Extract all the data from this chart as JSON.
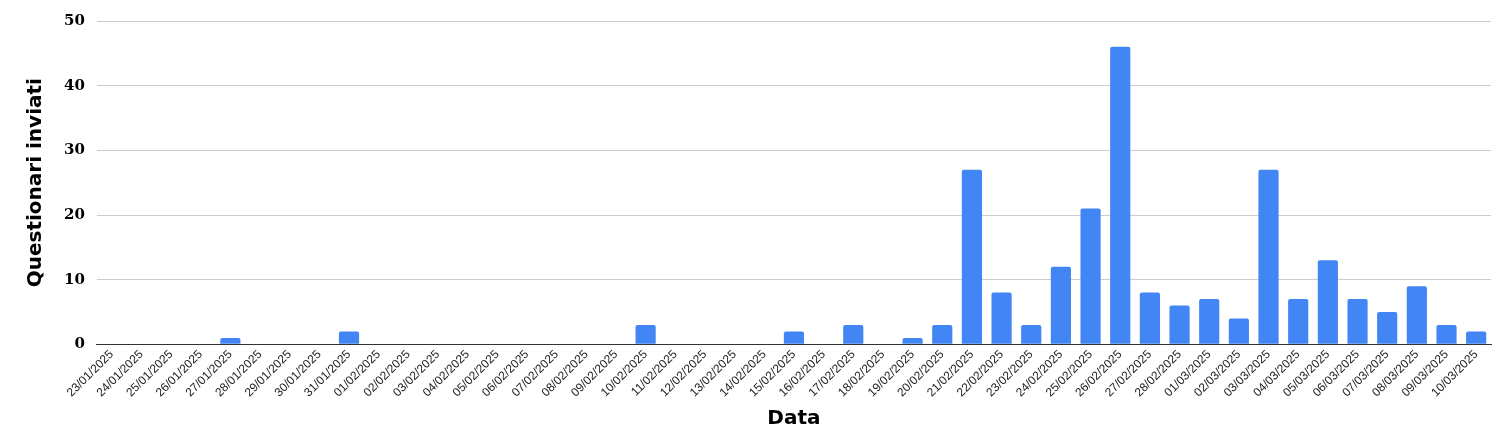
{
  "chart_data": {
    "type": "bar",
    "xlabel": "Data",
    "ylabel": "Questionari inviati",
    "categories": [
      "23/01/2025",
      "24/01/2025",
      "25/01/2025",
      "26/01/2025",
      "27/01/2025",
      "28/01/2025",
      "29/01/2025",
      "30/01/2025",
      "31/01/2025",
      "01/02/2025",
      "02/02/2025",
      "03/02/2025",
      "04/02/2025",
      "05/02/2025",
      "06/02/2025",
      "07/02/2025",
      "08/02/2025",
      "09/02/2025",
      "10/02/2025",
      "11/02/2025",
      "12/02/2025",
      "13/02/2025",
      "14/02/2025",
      "15/02/2025",
      "16/02/2025",
      "17/02/2025",
      "18/02/2025",
      "19/02/2025",
      "20/02/2025",
      "21/02/2025",
      "22/02/2025",
      "23/02/2025",
      "24/02/2025",
      "25/02/2025",
      "26/02/2025",
      "27/02/2025",
      "28/02/2025",
      "01/03/2025",
      "02/03/2025",
      "03/03/2025",
      "04/03/2025",
      "05/03/2025",
      "06/03/2025",
      "07/03/2025",
      "08/03/2025",
      "09/03/2025",
      "10/03/2025"
    ],
    "values": [
      0,
      0,
      0,
      0,
      1,
      0,
      0,
      0,
      2,
      0,
      0,
      0,
      0,
      0,
      0,
      0,
      0,
      0,
      3,
      0,
      0,
      0,
      0,
      2,
      0,
      3,
      0,
      1,
      3,
      27,
      8,
      3,
      12,
      21,
      46,
      8,
      6,
      7,
      4,
      27,
      7,
      13,
      7,
      5,
      9,
      3,
      2
    ],
    "color": "#4285f4",
    "ylim": [
      0,
      50
    ],
    "yticks": [
      0,
      10,
      20,
      30,
      40,
      50
    ],
    "grid": "y",
    "legend": false
  }
}
